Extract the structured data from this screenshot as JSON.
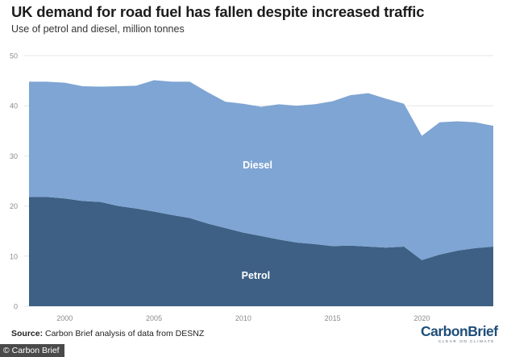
{
  "title": "UK demand for road fuel has fallen despite increased traffic",
  "subtitle": "Use of petrol and diesel, million tonnes",
  "source_label": "Source:",
  "source_text": " Carbon Brief analysis of data from DESNZ",
  "logo": {
    "main": "CarbonBrief",
    "tagline": "CLEAR ON CLIMATE"
  },
  "credit": "© Carbon Brief",
  "colors": {
    "petrol": "#3e6085",
    "diesel": "#7ea5d3",
    "grid": "#e6e6e6",
    "axis_text": "#8a8a8a",
    "label": "#ffffff"
  },
  "chart_data": {
    "type": "area",
    "stacked": true,
    "xlim": [
      1998,
      2024
    ],
    "ylim": [
      0,
      50
    ],
    "y_ticks": [
      0,
      10,
      20,
      30,
      40,
      50
    ],
    "x_ticks": [
      2000,
      2005,
      2010,
      2015,
      2020
    ],
    "grid": true,
    "x": [
      1998,
      1999,
      2000,
      2001,
      2002,
      2003,
      2004,
      2005,
      2006,
      2007,
      2008,
      2009,
      2010,
      2011,
      2012,
      2013,
      2014,
      2015,
      2016,
      2017,
      2018,
      2019,
      2020,
      2021,
      2022,
      2023,
      2024
    ],
    "series": [
      {
        "name": "Petrol",
        "label": "Petrol",
        "values": [
          21.8,
          21.8,
          21.5,
          21.0,
          20.8,
          20.0,
          19.5,
          18.9,
          18.2,
          17.6,
          16.5,
          15.6,
          14.7,
          14.0,
          13.3,
          12.7,
          12.4,
          12.0,
          12.1,
          11.9,
          11.7,
          11.9,
          9.2,
          10.3,
          11.1,
          11.6,
          11.9
        ]
      },
      {
        "name": "Diesel",
        "label": "Diesel",
        "values": [
          23.0,
          23.0,
          23.1,
          22.9,
          23.0,
          23.9,
          24.5,
          26.2,
          26.6,
          27.2,
          26.2,
          25.2,
          25.7,
          25.8,
          27.0,
          27.3,
          27.9,
          28.9,
          30.0,
          30.6,
          29.7,
          28.5,
          24.8,
          26.4,
          25.8,
          25.1,
          24.1
        ]
      }
    ]
  }
}
